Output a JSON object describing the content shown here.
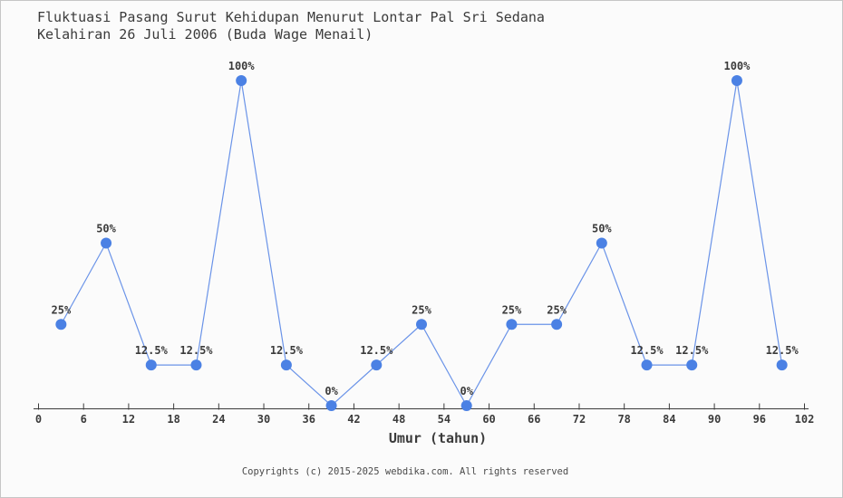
{
  "title": {
    "line1": "Fluktuasi Pasang Surut Kehidupan Menurut Lontar Pal Sri Sedana",
    "line2": "Kelahiran 26 Juli 2006 (Buda Wage Menail)"
  },
  "footer": {
    "copyright": "Copyrights (c) 2015-2025 webdika.com. All rights reserved"
  },
  "chart_data": {
    "type": "line",
    "title": "Fluktuasi Pasang Surut Kehidupan Menurut Lontar Pal Sri Sedana Kelahiran 26 Juli 2006 (Buda Wage Menail)",
    "xlabel": "Umur (tahun)",
    "ylabel": "",
    "x": [
      3,
      9,
      15,
      21,
      27,
      33,
      39,
      45,
      51,
      57,
      63,
      69,
      75,
      81,
      87,
      93,
      99
    ],
    "values": [
      25,
      50,
      12.5,
      12.5,
      100,
      12.5,
      0,
      12.5,
      25,
      0,
      25,
      25,
      50,
      12.5,
      12.5,
      100,
      12.5
    ],
    "point_labels": [
      "25%",
      "50%",
      "12.5%",
      "12.5%",
      "100%",
      "12.5%",
      "0%",
      "12.5%",
      "25%",
      "0%",
      "25%",
      "25%",
      "50%",
      "12.5%",
      "12.5%",
      "100%",
      "12.5%"
    ],
    "x_ticks": [
      0,
      6,
      12,
      18,
      24,
      30,
      36,
      42,
      48,
      54,
      60,
      66,
      72,
      78,
      84,
      90,
      96,
      102
    ],
    "xlim": [
      0,
      102
    ],
    "ylim": [
      0,
      100
    ],
    "grid": false,
    "legend": "none",
    "colors": {
      "line": "#6a93e8",
      "marker": "#4b81e4",
      "axis": "#3b3b3b",
      "text": "#3b3b3b"
    }
  }
}
